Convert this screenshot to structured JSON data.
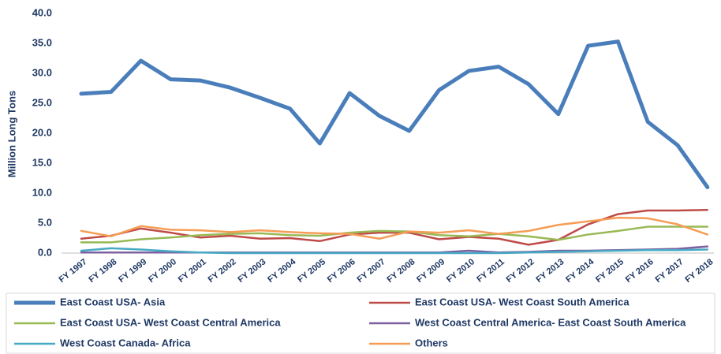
{
  "chart_data": {
    "type": "line",
    "y_label": "Million Long Tons",
    "categories": [
      "FY 1997",
      "FY 1998",
      "FY 1999",
      "FY 2000",
      "FY 2001",
      "FY 2002",
      "FY 2003",
      "FY 2004",
      "FY 2005",
      "FY 2006",
      "FY 2007",
      "FY 2008",
      "FY 2009",
      "FY 2010",
      "FY 2011",
      "FY 2012",
      "FY 2013",
      "FY 2014",
      "FY 2015",
      "FY 2016",
      "FY 2017",
      "FY 2018"
    ],
    "series": [
      {
        "name": "East Coast USA- Asia",
        "color": "#4a7ebb",
        "width": 5,
        "values": [
          26.6,
          26.9,
          32.1,
          29.0,
          28.8,
          27.6,
          25.9,
          24.1,
          18.3,
          26.7,
          22.9,
          20.4,
          27.2,
          30.4,
          31.1,
          28.2,
          23.2,
          34.6,
          35.3,
          21.9,
          18.0,
          11.0
        ]
      },
      {
        "name": "East Coast USA- West Coast South America",
        "color": "#be4b48",
        "width": 2.5,
        "values": [
          2.4,
          2.9,
          4.1,
          3.4,
          2.6,
          2.9,
          2.4,
          2.5,
          2.0,
          3.1,
          3.4,
          3.4,
          2.3,
          2.7,
          2.4,
          1.4,
          2.2,
          4.8,
          6.5,
          7.1,
          7.1,
          7.2
        ]
      },
      {
        "name": "East Coast USA- West Coast Central America",
        "color": "#98b954",
        "width": 2.5,
        "values": [
          1.8,
          1.8,
          2.3,
          2.6,
          3.0,
          3.2,
          3.3,
          3.0,
          2.9,
          3.4,
          3.7,
          3.6,
          3.0,
          2.8,
          3.2,
          2.8,
          2.2,
          3.1,
          3.7,
          4.4,
          4.4,
          4.4
        ]
      },
      {
        "name": "West Coast Central America- East Coast South America",
        "color": "#7d60a0",
        "width": 2.5,
        "values": [
          0.1,
          0.1,
          0.1,
          0.1,
          0.1,
          0.1,
          0.1,
          0.1,
          0.1,
          0.1,
          0.1,
          0.1,
          0.1,
          0.4,
          0.1,
          0.2,
          0.4,
          0.4,
          0.5,
          0.6,
          0.7,
          1.1
        ]
      },
      {
        "name": "West Coast Canada- Africa",
        "color": "#46aac5",
        "width": 2.5,
        "values": [
          0.4,
          0.8,
          0.6,
          0.3,
          0.1,
          0.0,
          0.0,
          0.0,
          0.0,
          0.0,
          0.0,
          0.0,
          0.0,
          0.0,
          0.0,
          0.1,
          0.2,
          0.3,
          0.4,
          0.5,
          0.5,
          0.6
        ]
      },
      {
        "name": "Others",
        "color": "#f59d56",
        "width": 2.5,
        "values": [
          3.7,
          2.8,
          4.5,
          3.9,
          3.8,
          3.5,
          3.8,
          3.5,
          3.3,
          3.2,
          2.4,
          3.6,
          3.4,
          3.8,
          3.2,
          3.7,
          4.7,
          5.3,
          5.9,
          5.8,
          4.8,
          3.1
        ]
      }
    ],
    "ylim": [
      0,
      40
    ],
    "yticks": [
      {
        "value": 0,
        "label": "0.0"
      },
      {
        "value": 5,
        "label": "5.0"
      },
      {
        "value": 10,
        "label": "10.0"
      },
      {
        "value": 15,
        "label": "15.0"
      },
      {
        "value": 20,
        "label": "20.0"
      },
      {
        "value": 25,
        "label": "25.0"
      },
      {
        "value": 30,
        "label": "30.0"
      },
      {
        "value": 35,
        "label": "35.0"
      },
      {
        "value": 40,
        "label": "40.0"
      }
    ],
    "legend": "bottom"
  }
}
